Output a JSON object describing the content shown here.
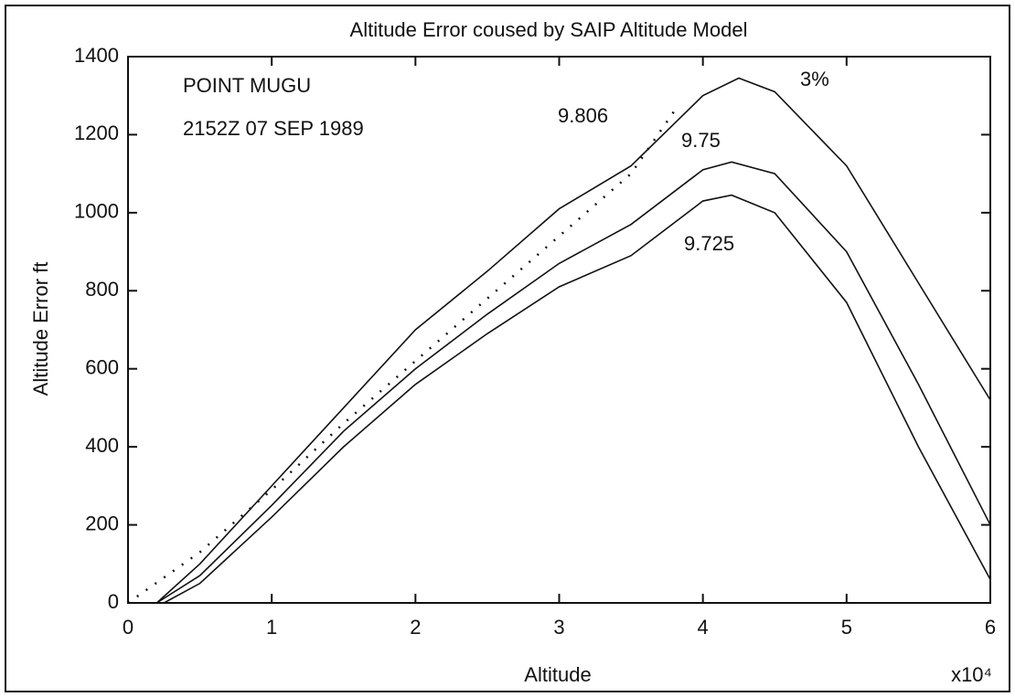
{
  "chart_data": {
    "type": "line",
    "title": "Altitude Error coused by SAIP Altitude Model",
    "xlabel": "Altitude",
    "x_multiplier": "x10⁴",
    "ylabel": "Altitude Error ft",
    "annotations": [
      "POINT MUGU",
      "2152Z  07 SEP 1989"
    ],
    "xlim": [
      0,
      6
    ],
    "xticks": [
      0,
      1,
      2,
      3,
      4,
      5,
      6
    ],
    "ylim": [
      0,
      1400
    ],
    "yticks": [
      0,
      200,
      400,
      600,
      800,
      1000,
      1200,
      1400
    ],
    "grid": false,
    "series": [
      {
        "name": "9.806",
        "color": "#111111",
        "style": "solid",
        "x": [
          0.2,
          0.5,
          1,
          1.5,
          2,
          2.5,
          3,
          3.5,
          4,
          4.25,
          4.5,
          5,
          5.5,
          6
        ],
        "values": [
          0,
          100,
          300,
          500,
          700,
          850,
          1010,
          1120,
          1300,
          1345,
          1310,
          1120,
          820,
          520
        ]
      },
      {
        "name": "9.75",
        "color": "#111111",
        "style": "solid",
        "x": [
          0.2,
          0.5,
          1,
          1.5,
          2,
          2.5,
          3,
          3.5,
          4,
          4.2,
          4.5,
          5,
          5.5,
          6
        ],
        "values": [
          0,
          70,
          250,
          440,
          600,
          740,
          870,
          970,
          1110,
          1130,
          1100,
          900,
          560,
          200
        ]
      },
      {
        "name": "9.725",
        "color": "#111111",
        "style": "solid",
        "x": [
          0.25,
          0.5,
          1,
          1.5,
          2,
          2.5,
          3,
          3.5,
          4,
          4.2,
          4.5,
          5,
          5.5,
          6
        ],
        "values": [
          0,
          50,
          220,
          400,
          560,
          690,
          810,
          890,
          1030,
          1045,
          1000,
          770,
          400,
          60
        ]
      },
      {
        "name": "3%",
        "color": "#111111",
        "style": "dotted",
        "x": [
          0,
          0.5,
          1,
          1.5,
          2,
          2.5,
          3,
          3.5,
          3.8
        ],
        "values": [
          0,
          130,
          290,
          460,
          620,
          780,
          940,
          1100,
          1260
        ]
      }
    ]
  }
}
